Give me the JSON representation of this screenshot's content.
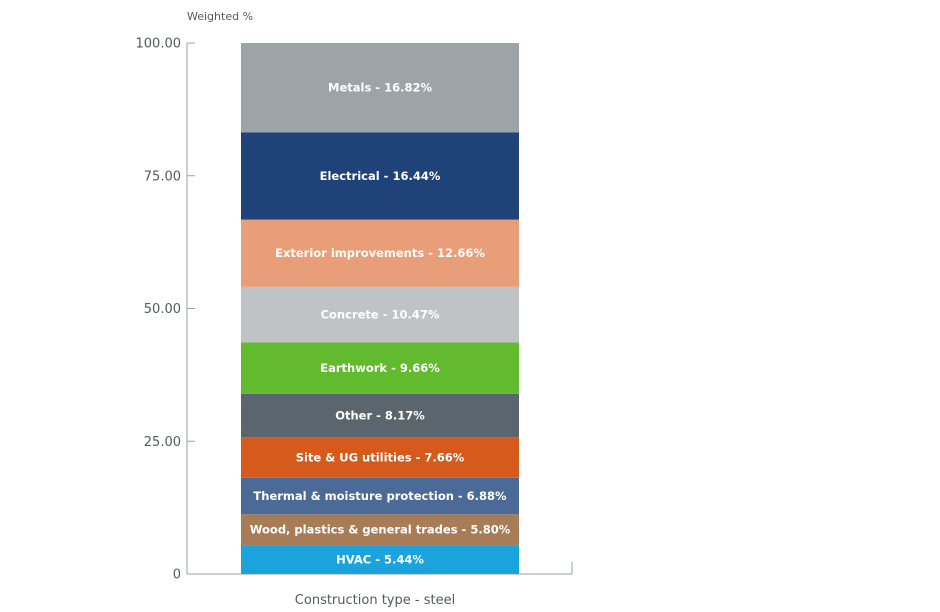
{
  "chart_data": {
    "type": "bar",
    "stacked": true,
    "ylabel": "Weighted %",
    "categories": [
      "Construction type - steel"
    ],
    "ylim": [
      0,
      100
    ],
    "yticks": [
      {
        "value": 0,
        "label": "0"
      },
      {
        "value": 25,
        "label": "25.00"
      },
      {
        "value": 50,
        "label": "50.00"
      },
      {
        "value": 75,
        "label": "75.00"
      },
      {
        "value": 100,
        "label": "100.00"
      }
    ],
    "grid": false,
    "series": [
      {
        "name": "HVAC",
        "value": 5.44,
        "label": "HVAC - 5.44%",
        "color": "#1aa3dc"
      },
      {
        "name": "Wood, plastics & general trades",
        "value": 5.8,
        "label": "Wood, plastics & general trades - 5.80%",
        "color": "#a87c56"
      },
      {
        "name": "Thermal & moisture protection",
        "value": 6.88,
        "label": "Thermal & moisture protection - 6.88%",
        "color": "#4c6a98"
      },
      {
        "name": "Site & UG utilities",
        "value": 7.66,
        "label": "Site & UG utilities - 7.66%",
        "color": "#d55a1c"
      },
      {
        "name": "Other",
        "value": 8.17,
        "label": "Other - 8.17%",
        "color": "#5a656d"
      },
      {
        "name": "Earthwork",
        "value": 9.66,
        "label": "Earthwork - 9.66%",
        "color": "#62bb2e"
      },
      {
        "name": "Concrete",
        "value": 10.47,
        "label": "Concrete - 10.47%",
        "color": "#bfc3c6"
      },
      {
        "name": "Exterior improvements",
        "value": 12.66,
        "label": "Exterior improvements - 12.66%",
        "color": "#e79e79"
      },
      {
        "name": "Electrical",
        "value": 16.44,
        "label": "Electrical - 16.44%",
        "color": "#1f4379"
      },
      {
        "name": "Metals",
        "value": 16.82,
        "label": "Metals - 16.82%",
        "color": "#9da4a8"
      }
    ]
  }
}
